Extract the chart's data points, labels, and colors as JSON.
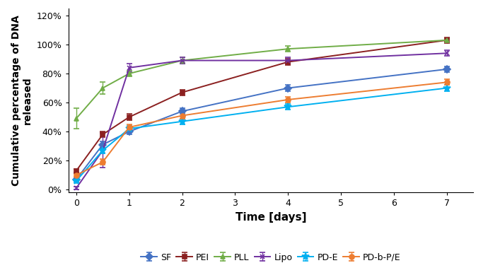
{
  "time_points": [
    0,
    0.5,
    1,
    2,
    4,
    7
  ],
  "series": {
    "SF": {
      "mean": [
        0.07,
        0.31,
        0.4,
        0.54,
        0.7,
        0.83
      ],
      "sd": [
        0.01,
        0.02,
        0.02,
        0.02,
        0.02,
        0.02
      ],
      "color": "#4472c4",
      "marker": "D",
      "label": "SF"
    },
    "PEI": {
      "mean": [
        0.13,
        0.38,
        0.5,
        0.67,
        0.88,
        1.03
      ],
      "sd": [
        0.01,
        0.02,
        0.02,
        0.02,
        0.02,
        0.02
      ],
      "color": "#8b2020",
      "marker": "s",
      "label": "PEI"
    },
    "PLL": {
      "mean": [
        0.49,
        0.7,
        0.8,
        0.89,
        0.97,
        1.03
      ],
      "sd": [
        0.07,
        0.04,
        0.02,
        0.02,
        0.02,
        0.01
      ],
      "color": "#70ad47",
      "marker": "^",
      "label": "PLL"
    },
    "Lipo": {
      "mean": [
        0.01,
        0.27,
        0.84,
        0.89,
        0.89,
        0.94
      ],
      "sd": [
        0.01,
        0.12,
        0.03,
        0.02,
        0.02,
        0.02
      ],
      "color": "#7030a0",
      "marker": "x",
      "label": "Lipo"
    },
    "PD-E": {
      "mean": [
        0.06,
        0.27,
        0.42,
        0.47,
        0.57,
        0.7
      ],
      "sd": [
        0.01,
        0.02,
        0.02,
        0.02,
        0.02,
        0.02
      ],
      "color": "#00b0f0",
      "marker": "*",
      "label": "PD-E"
    },
    "PD-b-P/E": {
      "mean": [
        0.1,
        0.19,
        0.43,
        0.51,
        0.62,
        0.74
      ],
      "sd": [
        0.01,
        0.02,
        0.02,
        0.02,
        0.02,
        0.02
      ],
      "color": "#ed7d31",
      "marker": "o",
      "label": "PD-b-P/E"
    }
  },
  "xlabel": "Time [days]",
  "ylabel": "Cumulative percentage of DNA\nreleased",
  "xlim": [
    -0.15,
    7.5
  ],
  "ylim": [
    -0.02,
    1.25
  ],
  "yticks": [
    0.0,
    0.2,
    0.4,
    0.6,
    0.8,
    1.0,
    1.2
  ],
  "xticks": [
    0,
    1,
    2,
    3,
    4,
    5,
    6,
    7
  ],
  "legend_order": [
    "SF",
    "PEI",
    "PLL",
    "Lipo",
    "PD-E",
    "PD-b-P/E"
  ]
}
